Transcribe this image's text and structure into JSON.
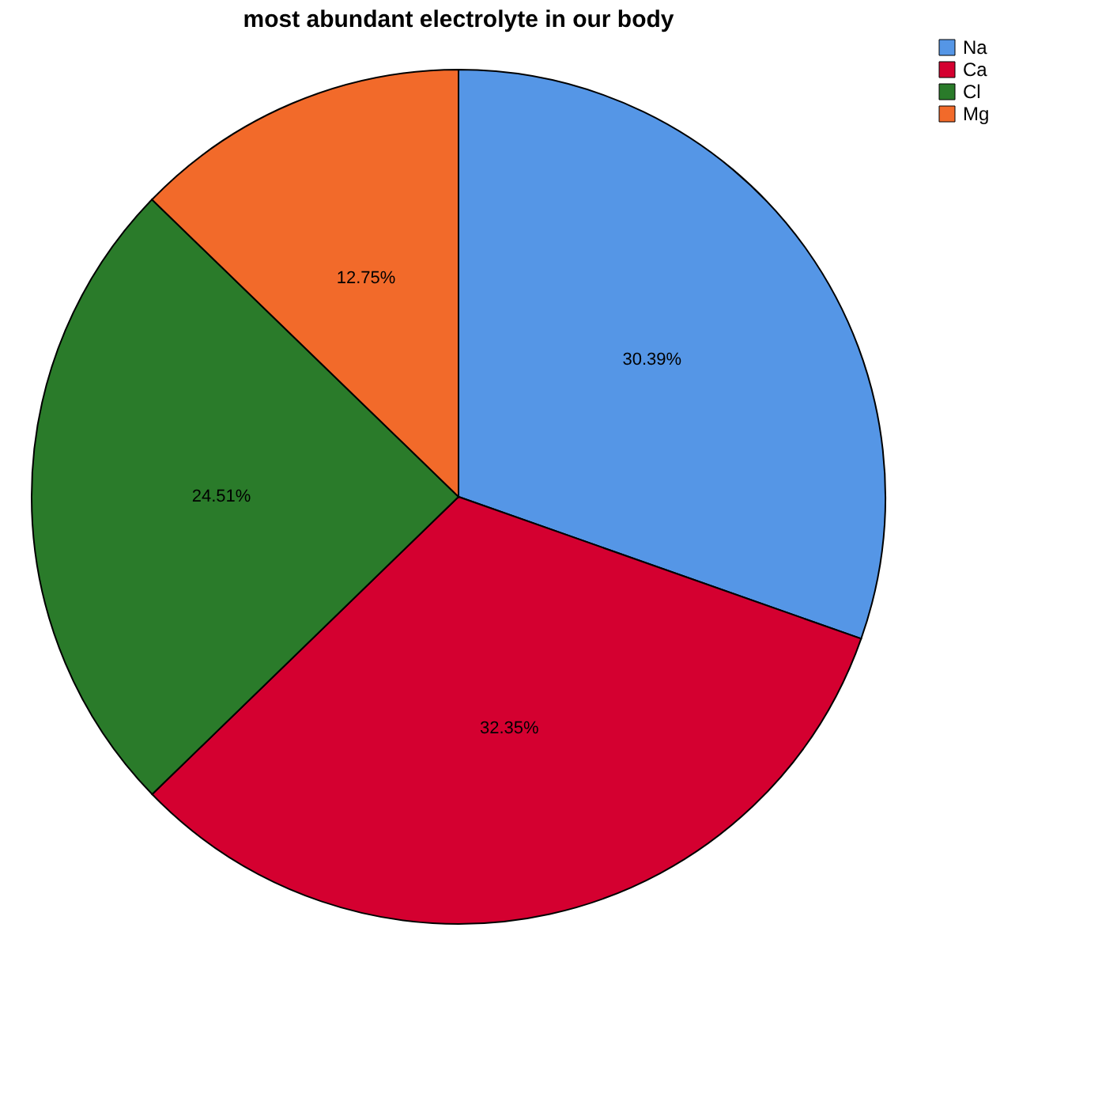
{
  "chart_data": {
    "type": "pie",
    "title": "most abundant electrolyte in our body",
    "categories": [
      "Na",
      "Ca",
      "Cl",
      "Mg"
    ],
    "values": [
      30.39,
      32.35,
      24.51,
      12.75
    ],
    "colors": [
      "#5596e6",
      "#d40030",
      "#2a7b2a",
      "#f26a2a"
    ],
    "value_labels": [
      "30.39%",
      "32.35%",
      "24.51%",
      "12.75%"
    ],
    "legend": "top right"
  }
}
